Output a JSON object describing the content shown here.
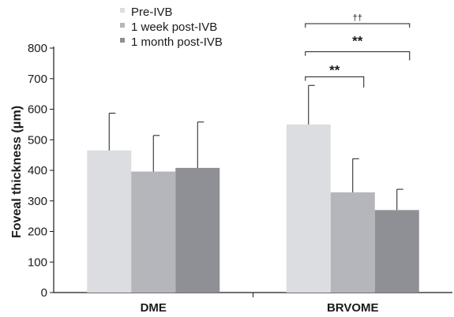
{
  "chart_data": {
    "type": "bar",
    "ylabel": "Foveal thickness (μm)",
    "xlabel": "",
    "ylim": [
      0,
      800
    ],
    "yticks": [
      0,
      100,
      200,
      300,
      400,
      500,
      600,
      700,
      800
    ],
    "categories": [
      "DME",
      "BRVOME"
    ],
    "series": [
      {
        "name": "Pre-IVB",
        "color": "#dcdde0",
        "values": [
          465,
          550
        ],
        "errors": [
          122,
          128
        ]
      },
      {
        "name": "1 week post-IVB",
        "color": "#b5b6bb",
        "values": [
          396,
          328
        ],
        "errors": [
          118,
          110
        ]
      },
      {
        "name": "1 month post-IVB",
        "color": "#8f9095",
        "values": [
          408,
          270
        ],
        "errors": [
          150,
          68
        ]
      }
    ],
    "legend_position": "top-left",
    "significance": [
      {
        "category": "BRVOME",
        "from_series": 0,
        "to_series": 1,
        "label": "**"
      },
      {
        "category": "BRVOME",
        "from_series": 0,
        "to_series": 2,
        "label": "**"
      },
      {
        "category": "BRVOME",
        "from_series": 0,
        "to_series": 2,
        "label": "††"
      }
    ]
  }
}
